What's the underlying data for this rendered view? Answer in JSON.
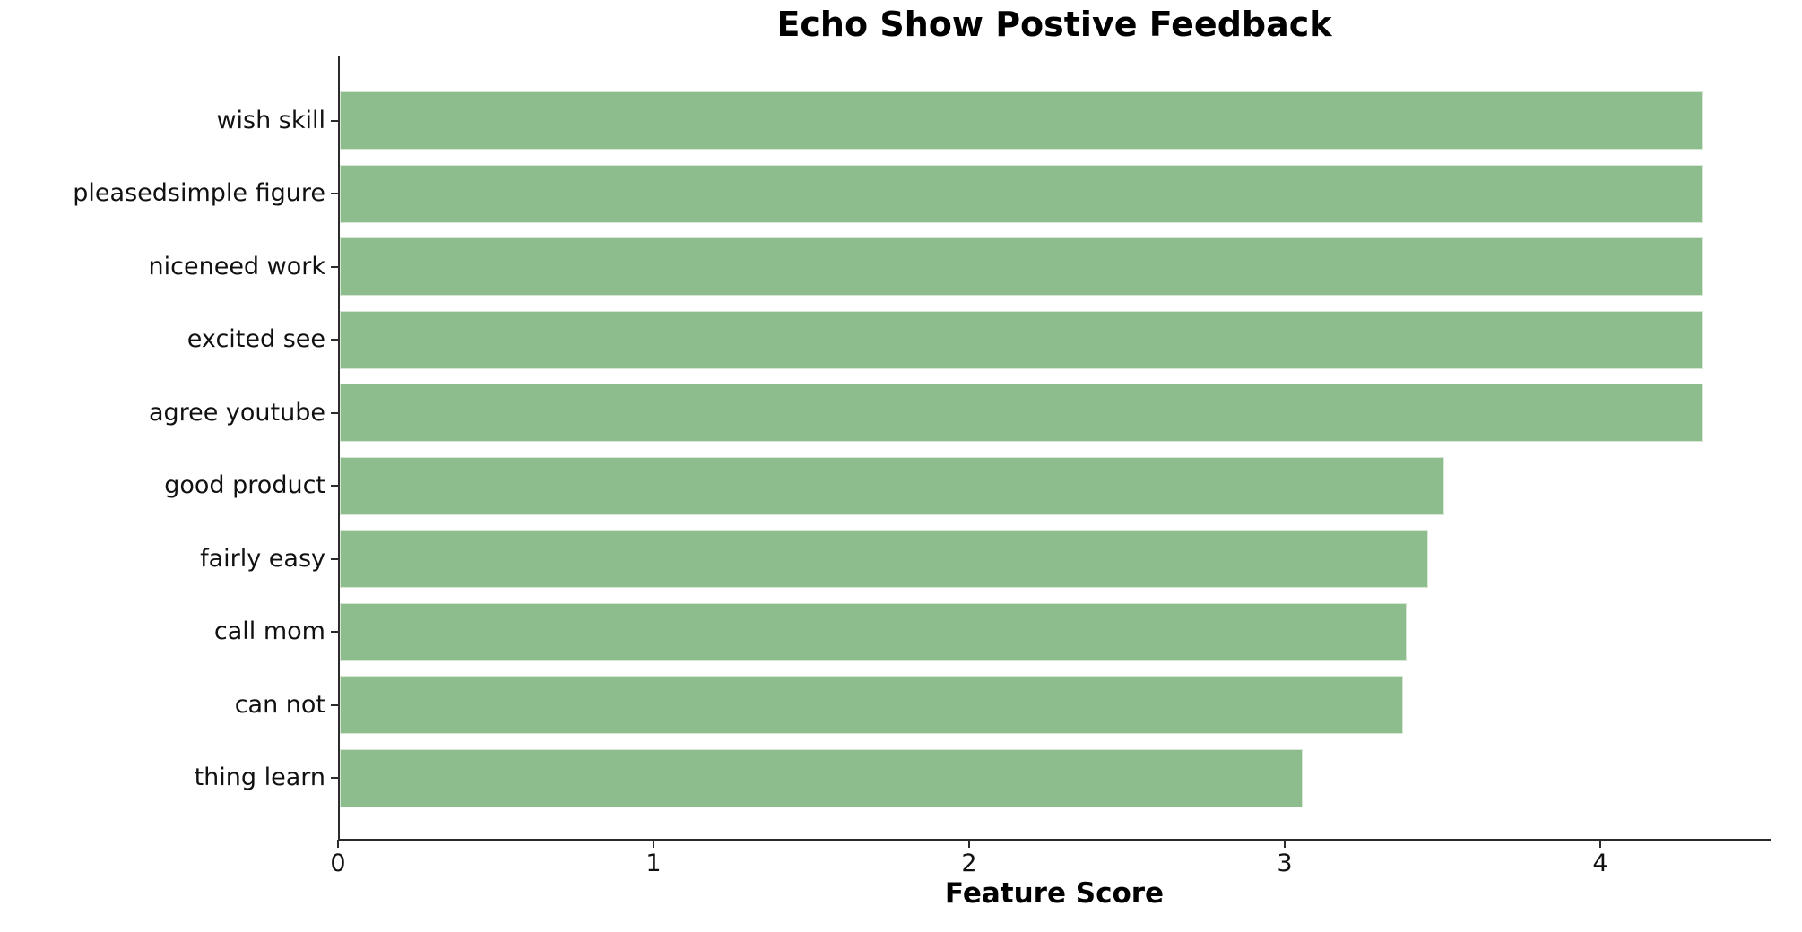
{
  "chart_data": {
    "type": "bar",
    "orientation": "horizontal",
    "title": "Echo Show Postive Feedback",
    "xlabel": "Feature Score",
    "ylabel": "",
    "categories": [
      "wish skill",
      "pleasedsimple figure",
      "niceneed work",
      "excited see",
      "agree youtube",
      "good product",
      "fairly easy",
      "call mom",
      "can not",
      "thing learn"
    ],
    "values": [
      4.32,
      4.32,
      4.32,
      4.32,
      4.32,
      3.5,
      3.45,
      3.38,
      3.37,
      3.05
    ],
    "xticks": [
      "0",
      "1",
      "2",
      "3",
      "4"
    ],
    "xtick_values": [
      0,
      1,
      2,
      3,
      4
    ],
    "xlim": [
      0,
      4.54
    ],
    "bar_color": "#8DBC8D",
    "axis_color": "#2b2b2b",
    "text_color": "#000000",
    "grid": false,
    "legend": null
  }
}
